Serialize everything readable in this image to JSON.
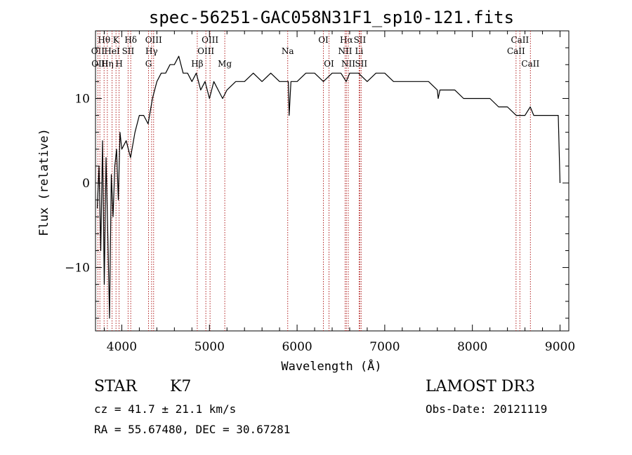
{
  "chart_data": {
    "type": "line",
    "title": "spec-56251-GAC058N31F1_sp10-121.fits",
    "xlabel": "Wavelength (Å)",
    "ylabel": "Flux (relative)",
    "xlim": [
      3700,
      9100
    ],
    "ylim": [
      -17.5,
      18
    ],
    "x_ticks": [
      4000,
      5000,
      6000,
      7000,
      8000,
      9000
    ],
    "y_ticks": [
      -10,
      0,
      10
    ],
    "x_tick_labels": [
      "4000",
      "5000",
      "6000",
      "7000",
      "8000",
      "9000"
    ],
    "y_tick_labels": [
      "−10",
      "0",
      "10"
    ],
    "grid": false,
    "line_color": "#000000",
    "marker_color": "#b22222",
    "series": [
      {
        "name": "flux",
        "x": [
          3720,
          3740,
          3760,
          3780,
          3800,
          3820,
          3840,
          3860,
          3880,
          3900,
          3920,
          3940,
          3960,
          3980,
          4000,
          4050,
          4100,
          4150,
          4200,
          4250,
          4300,
          4350,
          4400,
          4450,
          4500,
          4550,
          4600,
          4650,
          4700,
          4750,
          4800,
          4850,
          4900,
          4950,
          5000,
          5050,
          5100,
          5150,
          5200,
          5300,
          5400,
          5500,
          5600,
          5700,
          5800,
          5900,
          5910,
          5930,
          6000,
          6100,
          6200,
          6300,
          6400,
          6500,
          6560,
          6600,
          6700,
          6800,
          6900,
          7000,
          7100,
          7200,
          7300,
          7400,
          7500,
          7600,
          7610,
          7630,
          7700,
          7800,
          7900,
          8000,
          8100,
          8200,
          8300,
          8400,
          8500,
          8540,
          8600,
          8660,
          8700,
          8800,
          8900,
          8980,
          9000
        ],
        "y": [
          -3,
          2,
          -8,
          5,
          -12,
          3,
          -6,
          -16,
          1,
          -4,
          2,
          4,
          -2,
          6,
          4,
          5,
          3,
          6,
          8,
          8,
          7,
          10,
          12,
          13,
          13,
          14,
          14,
          15,
          13,
          13,
          12,
          13,
          11,
          12,
          10,
          12,
          11,
          10,
          11,
          12,
          12,
          13,
          12,
          13,
          12,
          12,
          8,
          12,
          12,
          13,
          13,
          12,
          13,
          13,
          12,
          13,
          13,
          12,
          13,
          13,
          12,
          12,
          12,
          12,
          12,
          11,
          10,
          11,
          11,
          11,
          10,
          10,
          10,
          10,
          9,
          9,
          8,
          8,
          8,
          9,
          8,
          8,
          8,
          8,
          0
        ]
      }
    ],
    "line_markers": [
      {
        "label": "Hθ",
        "x": 3798,
        "row": 1
      },
      {
        "label": "OII",
        "x": 3727,
        "row": 2
      },
      {
        "label": "OIII",
        "x": 3750,
        "row": 3
      },
      {
        "label": "K",
        "x": 3934,
        "row": 1
      },
      {
        "label": "HeI",
        "x": 3889,
        "row": 2
      },
      {
        "label": "Hη",
        "x": 3835,
        "row": 3
      },
      {
        "label": "SII",
        "x": 4072,
        "row": 2
      },
      {
        "label": "H",
        "x": 3969,
        "row": 3
      },
      {
        "label": "Hδ",
        "x": 4102,
        "row": 1
      },
      {
        "label": "OIII",
        "x": 4363,
        "row": 1
      },
      {
        "label": "Hγ",
        "x": 4340,
        "row": 2
      },
      {
        "label": "G",
        "x": 4305,
        "row": 3
      },
      {
        "label": "OIII",
        "x": 5007,
        "row": 1
      },
      {
        "label": "OIII",
        "x": 4959,
        "row": 2
      },
      {
        "label": "Hβ",
        "x": 4861,
        "row": 4
      },
      {
        "label": "Mg",
        "x": 5175,
        "row": 4
      },
      {
        "label": "Na",
        "x": 5893,
        "row": 2
      },
      {
        "label": "OI",
        "x": 6300,
        "row": 1
      },
      {
        "label": "OI",
        "x": 6364,
        "row": 3
      },
      {
        "label": "Hα",
        "x": 6563,
        "row": 1
      },
      {
        "label": "SII",
        "x": 6716,
        "row": 1
      },
      {
        "label": "NII",
        "x": 6548,
        "row": 2
      },
      {
        "label": "Li",
        "x": 6708,
        "row": 2
      },
      {
        "label": "NII",
        "x": 6584,
        "row": 3
      },
      {
        "label": "SII",
        "x": 6731,
        "row": 3
      },
      {
        "label": "CaII",
        "x": 8542,
        "row": 1
      },
      {
        "label": "CaII",
        "x": 8498,
        "row": 2
      },
      {
        "label": "CaII",
        "x": 8662,
        "row": 3
      }
    ]
  },
  "info": {
    "object_class": "STAR",
    "subclass": "K7",
    "survey": "LAMOST DR3",
    "cz_line": "cz = 41.7 ± 21.1 km/s",
    "obs_date_line": "Obs-Date: 20121119",
    "coords_line": "RA =  55.67480, DEC =  30.67281"
  }
}
